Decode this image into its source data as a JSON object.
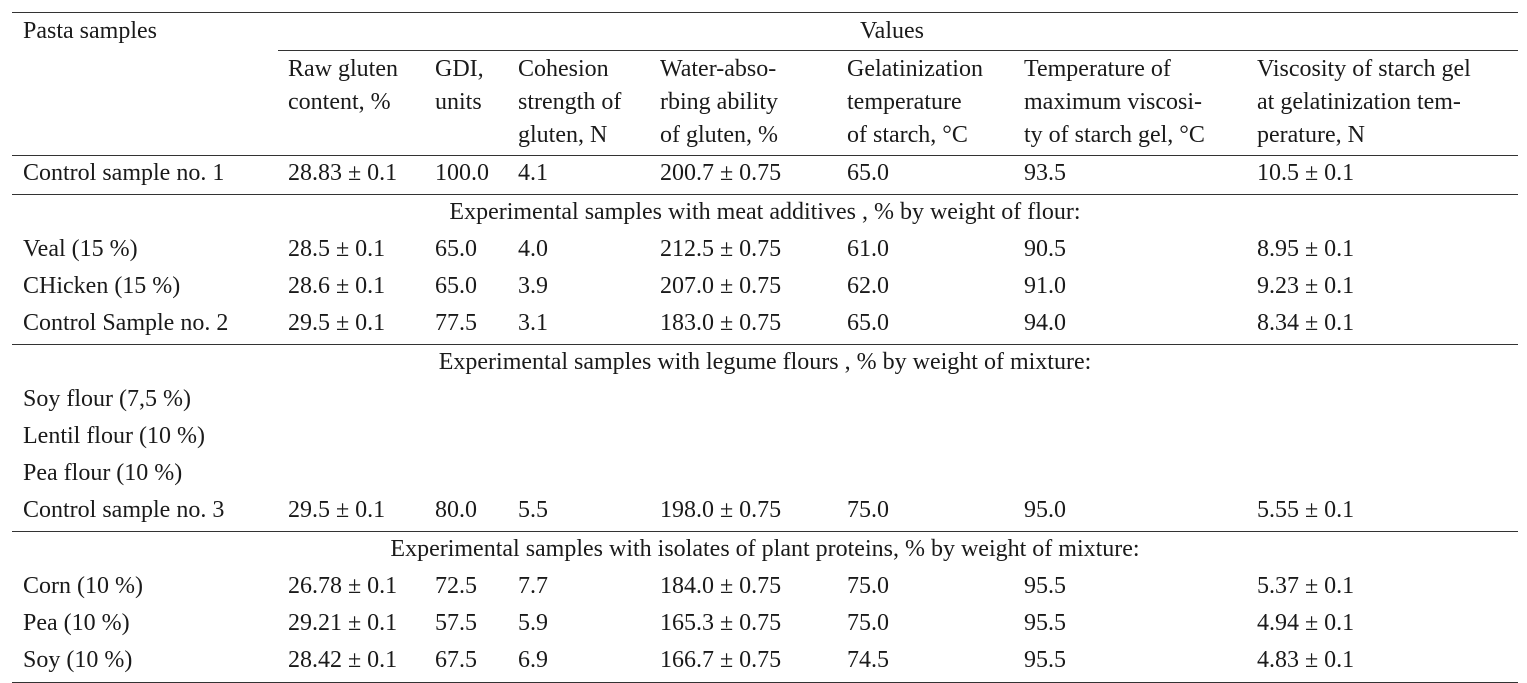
{
  "header": {
    "stub": "Pasta samples",
    "group": "Values",
    "columns": [
      [
        "Raw gluten",
        "content, %"
      ],
      [
        "GDI,",
        "units"
      ],
      [
        "Cohesion",
        "strength of",
        "gluten, N"
      ],
      [
        "Water-abso-",
        "rbing ability",
        "of gluten, %"
      ],
      [
        "Gelatinization",
        "temperature",
        "of starch, °C"
      ],
      [
        "Temperature of",
        "maximum viscosi-",
        "ty of starch gel, °C"
      ],
      [
        "Viscosity of starch gel",
        "at gelatinization tem-",
        "perature, N"
      ]
    ]
  },
  "groups": [
    {
      "title": "",
      "rows": [
        {
          "name": "Control sample no. 1",
          "values": [
            "28.83 ± 0.1",
            "100.0",
            "4.1",
            "200.7 ± 0.75",
            "65.0",
            "93.5",
            "10.5 ± 0.1"
          ]
        }
      ]
    },
    {
      "title": "Experimental samples with meat additives , % by weight of flour:",
      "rows": [
        {
          "name": "Veal (15 %)",
          "values": [
            "28.5 ± 0.1",
            "65.0",
            "4.0",
            "212.5 ± 0.75",
            "61.0",
            "90.5",
            "8.95 ± 0.1"
          ]
        },
        {
          "name": "CHicken (15 %)",
          "values": [
            "28.6 ± 0.1",
            "65.0",
            "3.9",
            "207.0 ± 0.75",
            "62.0",
            "91.0",
            "9.23 ± 0.1"
          ]
        },
        {
          "name": "Control Sample no. 2",
          "values": [
            "29.5 ± 0.1",
            "77.5",
            "3.1",
            "183.0 ± 0.75",
            "65.0",
            "94.0",
            "8.34 ± 0.1"
          ]
        }
      ]
    },
    {
      "title": "Experimental samples with legume flours , % by weight of mixture:",
      "rows": [
        {
          "name": "Soy flour (7,5 %)",
          "values": [
            "",
            "",
            "",
            "",
            "",
            "",
            ""
          ]
        },
        {
          "name": "Lentil flour (10 %)",
          "values": [
            "",
            "",
            "",
            "",
            "",
            "",
            ""
          ]
        },
        {
          "name": "Pea flour (10 %)",
          "values": [
            "",
            "",
            "",
            "",
            "",
            "",
            ""
          ]
        },
        {
          "name": "Control sample no. 3",
          "values": [
            "29.5 ± 0.1",
            "80.0",
            "5.5",
            "198.0 ± 0.75",
            "75.0",
            "95.0",
            "5.55 ± 0.1"
          ]
        }
      ]
    },
    {
      "title": "Experimental samples with isolates of plant proteins, % by weight of mixture:",
      "rows": [
        {
          "name": "Corn (10 %)",
          "values": [
            "26.78 ± 0.1",
            "72.5",
            "7.7",
            "184.0 ± 0.75",
            "75.0",
            "95.5",
            "5.37 ± 0.1"
          ]
        },
        {
          "name": "Pea (10 %)",
          "values": [
            "29.21 ± 0.1",
            "57.5",
            "5.9",
            "165.3 ± 0.75",
            "75.0",
            "95.5",
            "4.94 ± 0.1"
          ]
        },
        {
          "name": "Soy (10 %)",
          "values": [
            "28.42 ± 0.1",
            "67.5",
            "6.9",
            "166.7 ± 0.75",
            "74.5",
            "95.5",
            "4.83 ± 0.1"
          ]
        }
      ]
    }
  ]
}
